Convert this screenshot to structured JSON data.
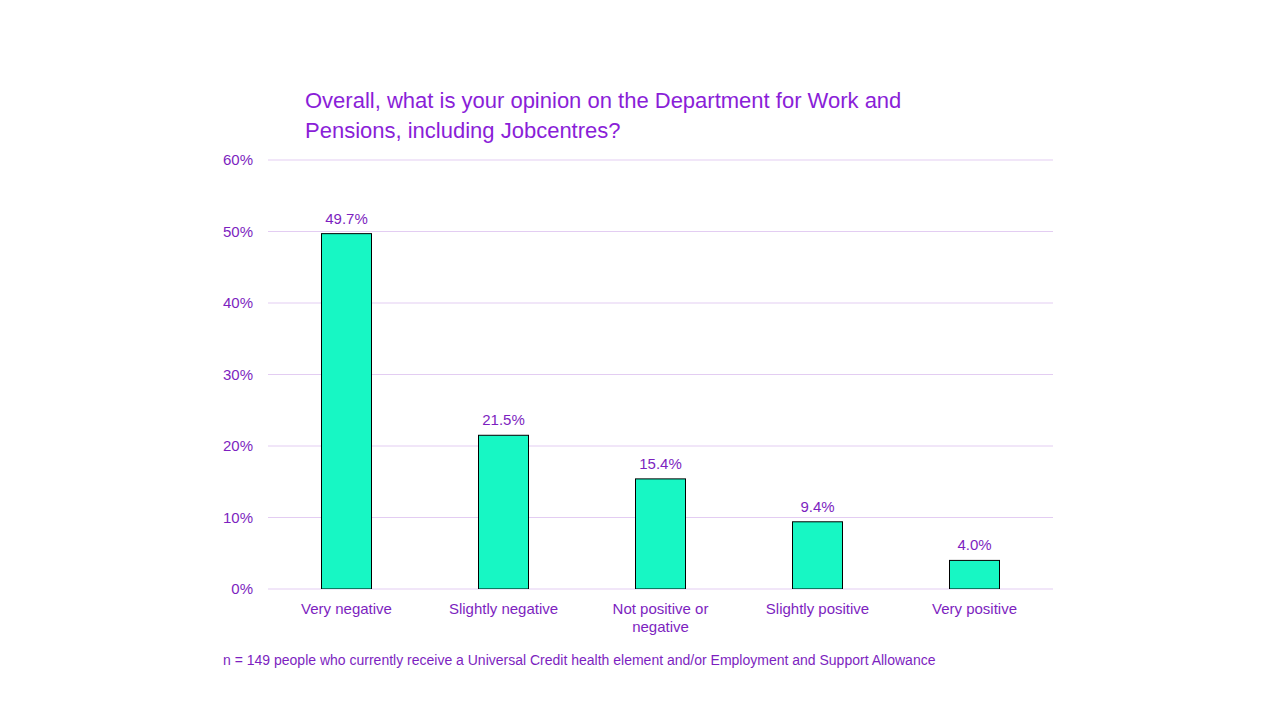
{
  "chart_data": {
    "type": "bar",
    "title": "Overall, what is your opinion on the Department for Work and Pensions, including Jobcentres?",
    "categories": [
      "Very negative",
      "Slightly negative",
      "Not positive or negative",
      "Slightly positive",
      "Very positive"
    ],
    "values": [
      49.7,
      21.5,
      15.4,
      9.4,
      4.0
    ],
    "value_labels": [
      "49.7%",
      "21.5%",
      "15.4%",
      "9.4%",
      "4.0%"
    ],
    "data_labels": true,
    "color": "#17f7c4",
    "ylim": [
      0,
      60
    ],
    "yticks": [
      {
        "value": 0,
        "label": "0%"
      },
      {
        "value": 10,
        "label": "10%"
      },
      {
        "value": 20,
        "label": "20%"
      },
      {
        "value": 30,
        "label": "30%"
      },
      {
        "value": 40,
        "label": "40%"
      },
      {
        "value": 50,
        "label": "50%"
      },
      {
        "value": 60,
        "label": "60%"
      }
    ],
    "grid": true,
    "annotations": [
      "n = 149 people who currently receive a Universal Credit health element and/or Employment and Support Allowance"
    ]
  }
}
